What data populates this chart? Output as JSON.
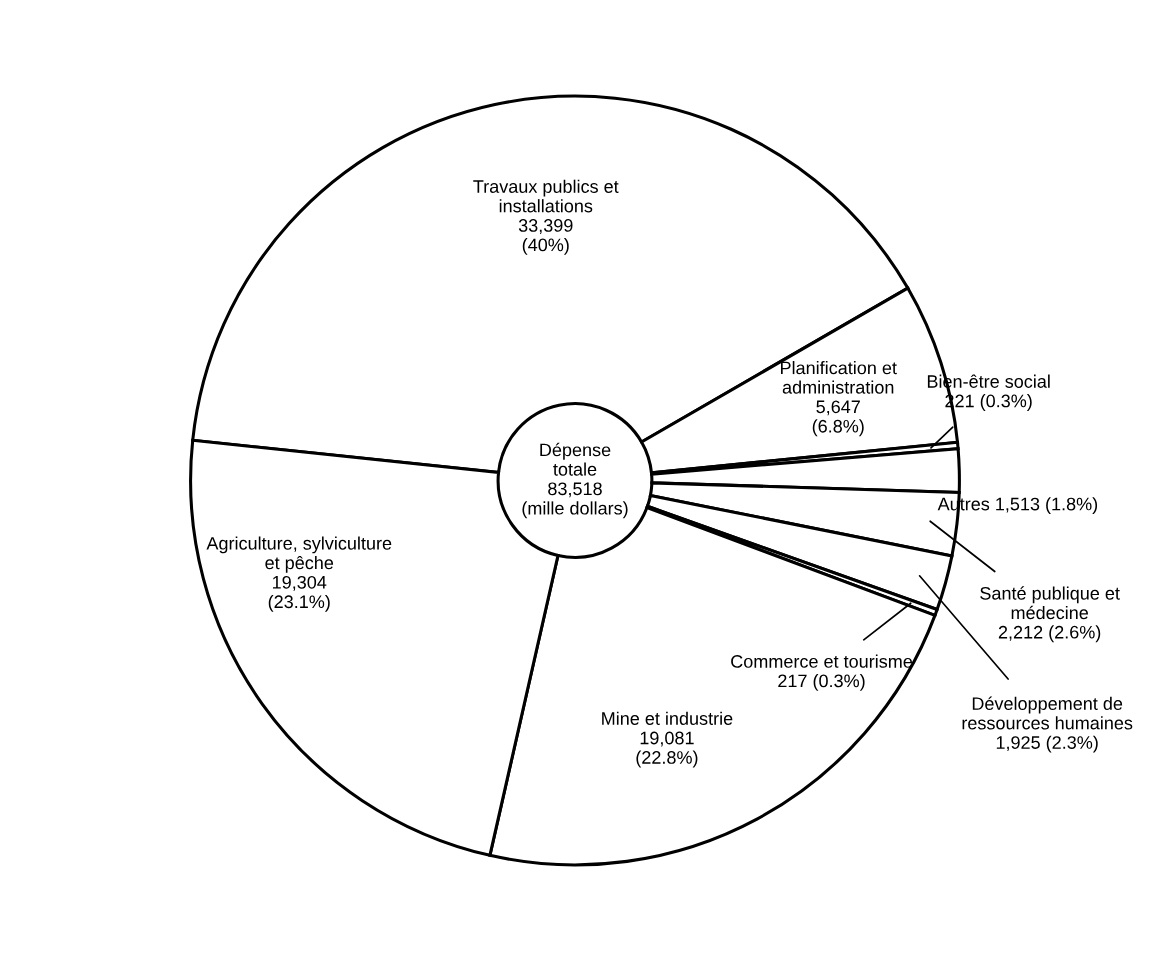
{
  "chart_data": {
    "type": "donut",
    "categories": [
      "Travaux publics et\ninstallations",
      "Planification et\nadministration",
      "Bien-être social",
      "Autres",
      "Santé publique et\nmédecine",
      "Développement de\nressources humaines",
      "Commerce et tourisme",
      "Mine et industrie",
      "Agriculture, sylviculture\net pêche"
    ],
    "values": [
      33399,
      5647,
      221,
      1513,
      2212,
      1925,
      217,
      19081,
      19304
    ],
    "value_labels": [
      "33,399\n(40%)",
      "5,647\n(6.8%)",
      "221 (0.3%)",
      "1,513 (1.8%)",
      "2,212 (2.6%)",
      "1,925 (2.3%)",
      "217 (0.3%)",
      "19,081\n(22.8%)",
      "19,304\n(23.1%)"
    ],
    "colors": [
      "#ffffff",
      "#ffffff",
      "#ffffff",
      "#ffffff",
      "#ffffff",
      "#ffffff",
      "#ffffff",
      "#ffffff",
      "#ffffff"
    ],
    "annotations": [
      "Dépense\ntotale\n83,518\n(mille dollars)"
    ]
  }
}
